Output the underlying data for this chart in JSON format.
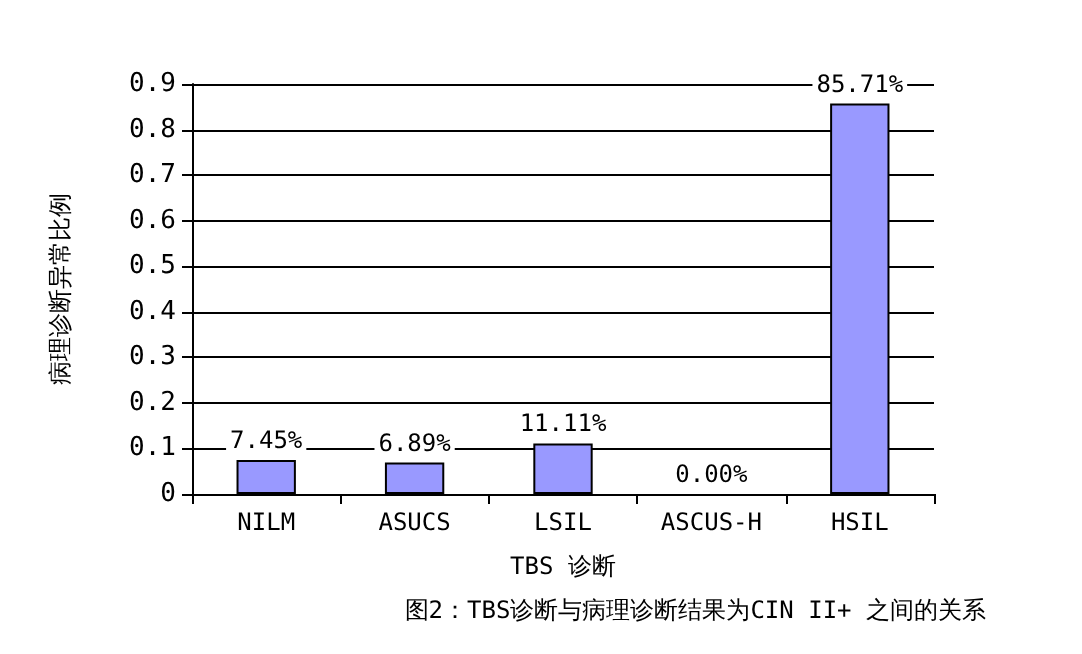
{
  "chart_data": {
    "type": "bar",
    "xlabel": "TBS 诊断",
    "ylabel": "病理诊断异常比例",
    "categories": [
      "NILM",
      "ASUCS",
      "LSIL",
      "ASCUS-H",
      "HSIL"
    ],
    "values": [
      0.0745,
      0.0689,
      0.1111,
      0,
      0.8571
    ],
    "value_labels": [
      "7.45%",
      "6.89%",
      "11.11%",
      "0.00%",
      "85.71%"
    ],
    "color": "#9999ff",
    "ylim": [
      0,
      0.9
    ],
    "yticks": [
      0,
      0.1,
      0.2,
      0.3,
      0.4,
      0.5,
      0.6,
      0.7,
      0.8,
      0.9
    ],
    "grid": "y",
    "annotations": [
      "图2：TBS诊断与病理诊断结果为CIN II+ 之间的关系"
    ]
  }
}
